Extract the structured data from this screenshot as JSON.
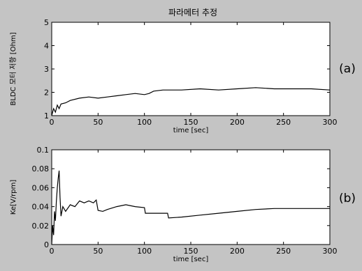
{
  "figure_title": "파라메터 추정",
  "panel_a_tag": "(a)",
  "panel_b_tag": "(b)",
  "colors": {
    "background": "#c4c4c4",
    "plot_bg": "#ffffff",
    "line": "#000000"
  },
  "chart_data": [
    {
      "type": "line",
      "panel": "(a)",
      "title": "파라메터 추정",
      "xlabel": "time [sec]",
      "ylabel": "BLDC 모터 저항 [Ohm]",
      "xlim": [
        0,
        300
      ],
      "ylim": [
        1,
        5
      ],
      "xticks": [
        0,
        50,
        100,
        150,
        200,
        250,
        300
      ],
      "yticks": [
        1,
        2,
        3,
        4,
        5
      ],
      "grid": false,
      "legend": "none",
      "series": [
        {
          "x": [
            0,
            2,
            4,
            6,
            8,
            10,
            15,
            20,
            30,
            40,
            50,
            60,
            70,
            80,
            90,
            100,
            105,
            110,
            120,
            140,
            160,
            180,
            200,
            220,
            240,
            260,
            280,
            300
          ],
          "y": [
            1.0,
            1.3,
            1.15,
            1.45,
            1.3,
            1.5,
            1.55,
            1.65,
            1.75,
            1.8,
            1.75,
            1.8,
            1.85,
            1.9,
            1.95,
            1.9,
            1.95,
            2.05,
            2.1,
            2.1,
            2.15,
            2.1,
            2.15,
            2.2,
            2.15,
            2.15,
            2.15,
            2.1
          ]
        }
      ]
    },
    {
      "type": "line",
      "panel": "(b)",
      "title": "",
      "xlabel": "time [sec]",
      "ylabel": "Ke[V/rpm]",
      "xlim": [
        0,
        300
      ],
      "ylim": [
        0,
        0.1
      ],
      "xticks": [
        0,
        50,
        100,
        150,
        200,
        250,
        300
      ],
      "yticks": [
        0,
        0.02,
        0.04,
        0.06,
        0.08,
        0.1
      ],
      "grid": false,
      "legend": "none",
      "series": [
        {
          "x": [
            0,
            1,
            2,
            3,
            4,
            5,
            6,
            7,
            8,
            9,
            10,
            12,
            15,
            20,
            25,
            30,
            35,
            40,
            45,
            48,
            50,
            55,
            60,
            70,
            80,
            90,
            100,
            101,
            110,
            120,
            125,
            126,
            140,
            160,
            180,
            200,
            220,
            240,
            260,
            280,
            300
          ],
          "y": [
            0.0,
            0.02,
            0.01,
            0.035,
            0.025,
            0.045,
            0.06,
            0.07,
            0.078,
            0.05,
            0.03,
            0.04,
            0.035,
            0.042,
            0.04,
            0.046,
            0.044,
            0.046,
            0.044,
            0.047,
            0.036,
            0.035,
            0.037,
            0.04,
            0.042,
            0.04,
            0.039,
            0.033,
            0.033,
            0.033,
            0.033,
            0.028,
            0.029,
            0.031,
            0.033,
            0.035,
            0.037,
            0.038,
            0.038,
            0.038,
            0.038
          ]
        }
      ]
    }
  ]
}
